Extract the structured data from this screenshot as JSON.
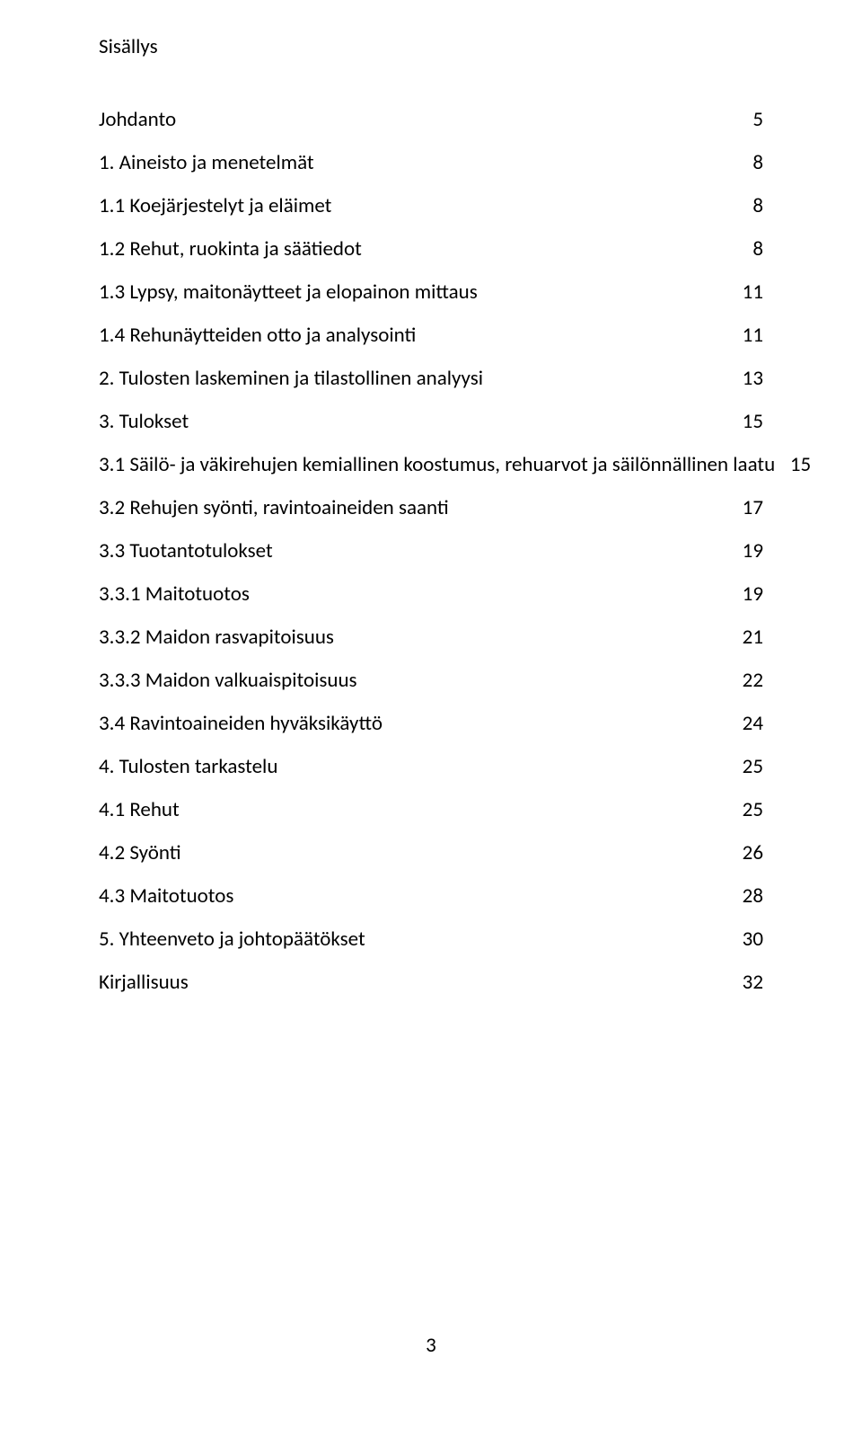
{
  "title": "Sisällys",
  "page_number": "3",
  "colors": {
    "background": "#ffffff",
    "text": "#000000"
  },
  "typography": {
    "font_family": "Calibri",
    "font_size_pt": 12,
    "title_font_size_pt": 12
  },
  "toc": [
    {
      "label": "Johdanto",
      "page": "5",
      "level": 1
    },
    {
      "label": "1. Aineisto ja menetelmät",
      "page": "8",
      "level": 1
    },
    {
      "label": "1.1 Koejärjestelyt ja eläimet",
      "page": "8",
      "level": 2
    },
    {
      "label": "1.2 Rehut, ruokinta ja säätiedot",
      "page": "8",
      "level": 2
    },
    {
      "label": "1.3 Lypsy, maitonäytteet ja elopainon mittaus",
      "page": "11",
      "level": 2
    },
    {
      "label": "1.4 Rehunäytteiden otto ja analysointi",
      "page": "11",
      "level": 2
    },
    {
      "label": "2. Tulosten laskeminen ja tilastollinen analyysi",
      "page": "13",
      "level": 1
    },
    {
      "label": "3. Tulokset",
      "page": "15",
      "level": 1
    },
    {
      "label": "3.1 Säilö- ja väkirehujen kemiallinen koostumus, rehuarvot ja säilönnällinen laatu",
      "page": "15",
      "level": 2
    },
    {
      "label": "3.2 Rehujen syönti, ravintoaineiden saanti",
      "page": "17",
      "level": 2
    },
    {
      "label": "3.3 Tuotantotulokset",
      "page": "19",
      "level": 2
    },
    {
      "label": "3.3.1 Maitotuotos",
      "page": "19",
      "level": 2
    },
    {
      "label": "3.3.2 Maidon rasvapitoisuus",
      "page": "21",
      "level": 2
    },
    {
      "label": "3.3.3 Maidon valkuaispitoisuus",
      "page": "22",
      "level": 2
    },
    {
      "label": "3.4 Ravintoaineiden hyväksikäyttö",
      "page": "24",
      "level": 2
    },
    {
      "label": "4. Tulosten tarkastelu",
      "page": "25",
      "level": 1
    },
    {
      "label": "4.1 Rehut",
      "page": "25",
      "level": 2
    },
    {
      "label": "4.2 Syönti",
      "page": "26",
      "level": 2
    },
    {
      "label": "4.3 Maitotuotos",
      "page": "28",
      "level": 2
    },
    {
      "label": "5. Yhteenveto ja johtopäätökset",
      "page": "30",
      "level": 1
    },
    {
      "label": "Kirjallisuus",
      "page": "32",
      "level": 1
    }
  ]
}
